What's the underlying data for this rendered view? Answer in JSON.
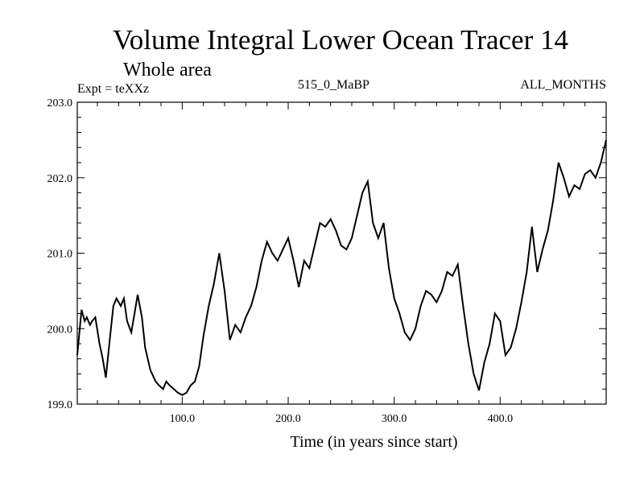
{
  "chart_data": {
    "type": "line",
    "title": "Volume Integral Lower Ocean Tracer 14",
    "subtitle": "Whole area",
    "experiment_label": "Expt = teXXz",
    "run_label": "515_0_MaBP",
    "months_label": "ALL_MONTHS",
    "xlabel": "Time (in years since start)",
    "ylabel": "",
    "xlim": [
      1,
      500
    ],
    "ylim": [
      199.0,
      203.0
    ],
    "x_ticks": [
      100.0,
      200.0,
      300.0,
      400.0
    ],
    "x_tick_labels": [
      "100.0",
      "200.0",
      "300.0",
      "400.0"
    ],
    "y_ticks": [
      199.0,
      200.0,
      201.0,
      202.0,
      203.0
    ],
    "y_tick_labels": [
      "199.0",
      "200.0",
      "201.0",
      "202.0",
      "203.0"
    ],
    "series": [
      {
        "name": "Volume Integral Lower Ocean Tracer 14",
        "x": [
          1,
          5,
          8,
          10,
          13,
          15,
          18,
          22,
          25,
          28,
          32,
          35,
          38,
          42,
          45,
          48,
          52,
          55,
          58,
          62,
          65,
          70,
          75,
          78,
          82,
          85,
          88,
          92,
          96,
          100,
          104,
          108,
          112,
          116,
          120,
          125,
          130,
          135,
          140,
          145,
          150,
          155,
          160,
          165,
          170,
          175,
          180,
          185,
          190,
          195,
          200,
          205,
          210,
          215,
          220,
          225,
          230,
          235,
          240,
          245,
          250,
          255,
          260,
          265,
          270,
          275,
          280,
          285,
          290,
          295,
          300,
          305,
          310,
          315,
          320,
          325,
          330,
          335,
          340,
          345,
          350,
          355,
          360,
          365,
          370,
          375,
          380,
          385,
          390,
          395,
          400,
          405,
          410,
          415,
          420,
          425,
          430,
          435,
          440,
          445,
          450,
          455,
          460,
          465,
          470,
          475,
          480,
          485,
          490,
          495,
          500
        ],
        "values": [
          199.65,
          200.25,
          200.1,
          200.15,
          200.05,
          200.1,
          200.15,
          199.8,
          199.6,
          199.35,
          199.9,
          200.3,
          200.4,
          200.3,
          200.4,
          200.1,
          199.95,
          200.2,
          200.45,
          200.15,
          199.75,
          199.45,
          199.3,
          199.25,
          199.2,
          199.3,
          199.25,
          199.2,
          199.15,
          199.12,
          199.15,
          199.25,
          199.3,
          199.5,
          199.9,
          200.3,
          200.6,
          201.0,
          200.5,
          199.85,
          200.05,
          199.95,
          200.15,
          200.3,
          200.55,
          200.9,
          201.15,
          201.0,
          200.9,
          201.05,
          201.2,
          200.9,
          200.55,
          200.9,
          200.8,
          201.1,
          201.4,
          201.35,
          201.45,
          201.3,
          201.1,
          201.05,
          201.2,
          201.5,
          201.8,
          201.95,
          201.4,
          201.2,
          201.4,
          200.8,
          200.4,
          200.2,
          199.95,
          199.85,
          200.0,
          200.3,
          200.5,
          200.45,
          200.35,
          200.5,
          200.75,
          200.7,
          200.85,
          200.3,
          199.8,
          199.4,
          199.18,
          199.55,
          199.8,
          200.2,
          200.1,
          199.65,
          199.75,
          200.0,
          200.35,
          200.75,
          201.35,
          200.75,
          201.05,
          201.3,
          201.7,
          202.2,
          202.0,
          201.75,
          201.9,
          201.85,
          202.05,
          202.1,
          202.0,
          202.2,
          202.5
        ]
      }
    ]
  }
}
